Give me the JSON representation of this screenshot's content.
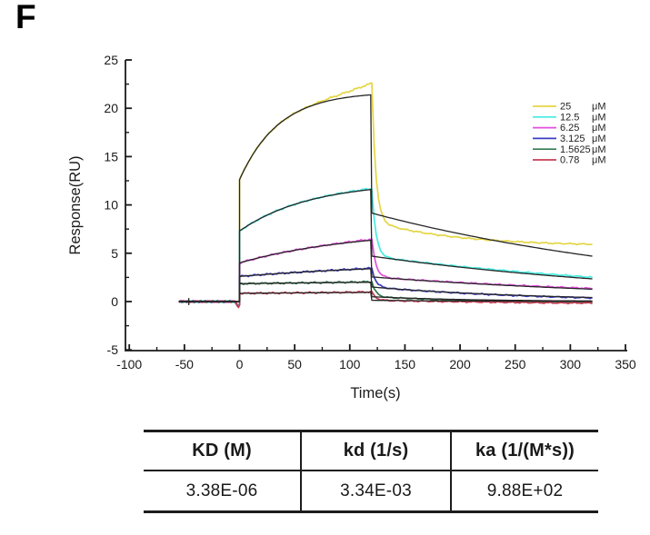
{
  "panel_label": "F",
  "chart_data": {
    "type": "line",
    "title": "",
    "xlabel": "Time(s)",
    "ylabel": "Response(RU)",
    "xlim": [
      -100,
      350
    ],
    "ylim": [
      -5,
      25
    ],
    "x_ticks": [
      -100,
      -50,
      0,
      50,
      100,
      150,
      200,
      250,
      300,
      350
    ],
    "x_minor_step": 25,
    "y_ticks": [
      -5,
      0,
      5,
      10,
      15,
      20,
      25
    ],
    "y_minor_step": 2.5,
    "grid": false,
    "legend_position": "top-right",
    "legend_unit": "μM",
    "axis_color": "#1a1a1a",
    "fit_color": "#262626",
    "phases": {
      "baseline_start": -55,
      "injection_start": 0,
      "injection_end": 120,
      "end": 320
    },
    "baseline_cross_t": -46,
    "series": [
      {
        "name": "25",
        "unit": "μM",
        "color": "#e4d545",
        "conc_uM": 25,
        "jump": 12.6,
        "assoc_end_fit": 21.4,
        "assoc_end_data": 22.6,
        "kobs": 0.0281,
        "diss_start": 9.15,
        "diss_end_fit": 4.7,
        "diss_end_data": 5.75,
        "drop_mid": 8.3
      },
      {
        "name": "12.5",
        "unit": "μM",
        "color": "#45ece0",
        "conc_uM": 12.5,
        "jump": 7.3,
        "assoc_end_fit": 11.6,
        "assoc_end_data": 11.7,
        "kobs": 0.0157,
        "diss_start": 4.7,
        "diss_end_fit": 2.35,
        "diss_end_data": 2.5,
        "drop_mid": 5.0
      },
      {
        "name": "6.25",
        "unit": "μM",
        "color": "#e24fdc",
        "conc_uM": 6.25,
        "jump": 4.0,
        "assoc_end_fit": 6.35,
        "assoc_end_data": 6.45,
        "kobs": 0.0095,
        "diss_start": 2.55,
        "diss_end_fit": 1.28,
        "diss_end_data": 1.35,
        "drop_mid": 2.9
      },
      {
        "name": "3.125",
        "unit": "μM",
        "color": "#3c3cc4",
        "conc_uM": 3.125,
        "jump": 2.6,
        "assoc_end_fit": 3.4,
        "assoc_end_data": 3.45,
        "kobs": 0.0064,
        "diss_start": 1.5,
        "diss_end_fit": 0.42,
        "diss_end_data": 0.38,
        "drop_mid": 1.6
      },
      {
        "name": "1.5625",
        "unit": "μM",
        "color": "#337a50",
        "conc_uM": 1.5625,
        "jump": 1.85,
        "assoc_end_fit": 2.0,
        "assoc_end_data": 2.05,
        "kobs": 0.005,
        "diss_start": 0.5,
        "diss_end_fit": 0.06,
        "diss_end_data": -0.08,
        "drop_mid": 0.55
      },
      {
        "name": "0.78",
        "unit": "μM",
        "color": "#c63e54",
        "conc_uM": 0.78,
        "jump": 0.85,
        "assoc_end_fit": 0.95,
        "assoc_end_data": 1.0,
        "kobs": 0.0042,
        "diss_start": 0.13,
        "diss_end_fit": 0.02,
        "diss_end_data": -0.15,
        "drop_mid": 0.18
      }
    ]
  },
  "table": {
    "headers": [
      "KD (M)",
      "kd (1/s)",
      "ka (1/(M*s))"
    ],
    "rows": [
      [
        "3.38E-06",
        "3.34E-03",
        "9.88E+02"
      ]
    ]
  }
}
